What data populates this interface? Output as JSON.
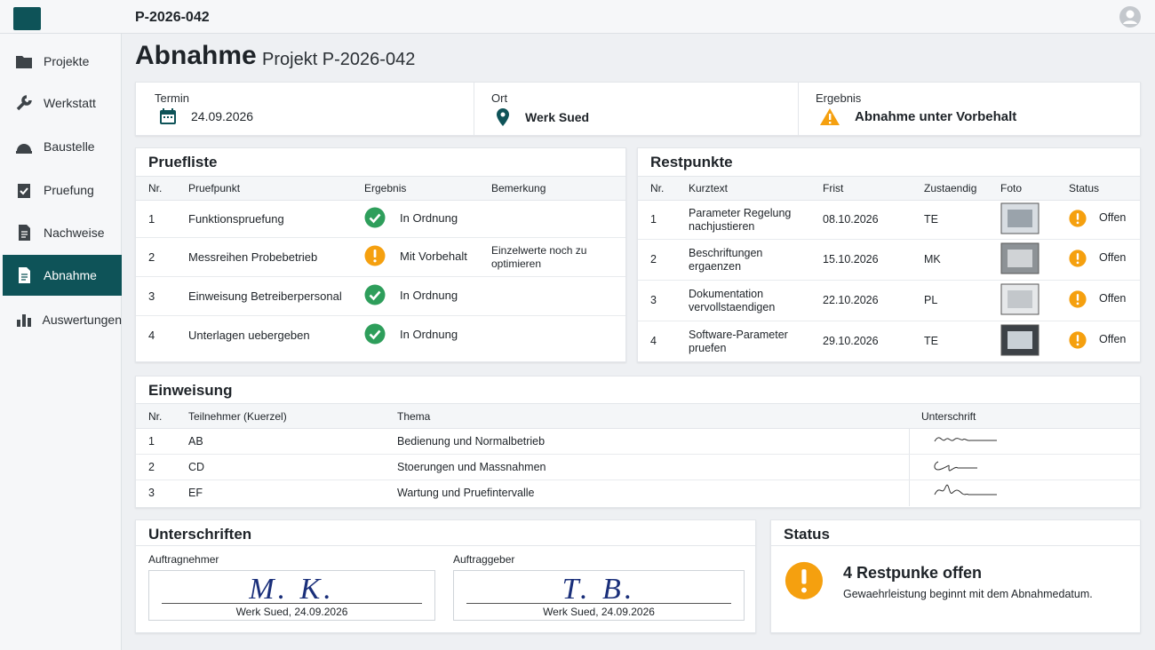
{
  "header": {
    "project_id": "P-2026-042"
  },
  "sidebar": {
    "items": [
      "Projekte",
      "Werkstatt",
      "Baustelle",
      "Pruefung",
      "Nachweise",
      "Abnahme",
      "Auswertungen"
    ]
  },
  "page": {
    "title": "Abnahme",
    "subtitle": "Projekt P-2026-042"
  },
  "info": [
    {
      "label": "Termin",
      "value": "24.09.2026"
    },
    {
      "label": "Ort",
      "value": "Werk Sued"
    },
    {
      "label": "Ergebnis",
      "value": "Abnahme unter Vorbehalt"
    }
  ],
  "pruefliste": {
    "title": "Pruefliste",
    "columns": [
      "Nr.",
      "Pruefpunkt",
      "Ergebnis",
      "Bemerkung"
    ],
    "rows": [
      {
        "nr": 1,
        "pruefpunkt": "Funktionspruefung",
        "ergebnis": "In Ordnung"
      },
      {
        "nr": 2,
        "pruefpunkt": "Messreihen Probebetrieb",
        "ergebnis": "Mit Vorbehalt",
        "bemerkung": "Einzelwerte noch zu optimieren"
      },
      {
        "nr": 3,
        "pruefpunkt": "Einweisung Betreiberpersonal",
        "ergebnis": "In Ordnung"
      },
      {
        "nr": 4,
        "pruefpunkt": "Unterlagen uebergeben",
        "ergebnis": "In Ordnung"
      }
    ]
  },
  "restpunkte": {
    "title": "Restpunkte",
    "columns": [
      "Nr.",
      "Kurztext",
      "Frist",
      "Zustaendig",
      "Foto",
      "Status"
    ],
    "rows": [
      {
        "nr": 1,
        "kurztext": "Parameter Regelung nachjustieren",
        "frist": "08.10.2026",
        "zustaendig": "TE",
        "status": "Offen"
      },
      {
        "nr": 2,
        "kurztext": "Beschriftungen ergaenzen",
        "frist": "15.10.2026",
        "zustaendig": "MK",
        "status": "Offen"
      },
      {
        "nr": 3,
        "kurztext": "Dokumentation vervollstaendigen",
        "frist": "22.10.2026",
        "zustaendig": "PL",
        "status": "Offen"
      },
      {
        "nr": 4,
        "kurztext": "Software-Parameter pruefen",
        "frist": "29.10.2026",
        "zustaendig": "TE",
        "status": "Offen"
      }
    ]
  },
  "einweisung": {
    "title": "Einweisung",
    "columns": [
      "Nr.",
      "Teilnehmer (Kuerzel)",
      "Thema",
      "Unterschrift"
    ],
    "rows": [
      {
        "nr": 1,
        "teilnehmer": "AB",
        "thema": "Bedienung und Normalbetrieb"
      },
      {
        "nr": 2,
        "teilnehmer": "CD",
        "thema": "Stoerungen und Massnahmen"
      },
      {
        "nr": 3,
        "teilnehmer": "EF",
        "thema": "Wartung und Pruefintervalle"
      }
    ]
  },
  "unterschriften": {
    "title": "Unterschriften",
    "signers": [
      {
        "role": "Auftragnehmer",
        "signature": "M. K.",
        "caption": "Werk Sued, 24.09.2026"
      },
      {
        "role": "Auftraggeber",
        "signature": "T. B.",
        "caption": "Werk Sued, 24.09.2026"
      }
    ]
  },
  "status": {
    "title": "Status",
    "headline": "4 Restpunke offen",
    "text": "Gewaehrleistung beginnt mit dem Abnahmedatum."
  }
}
